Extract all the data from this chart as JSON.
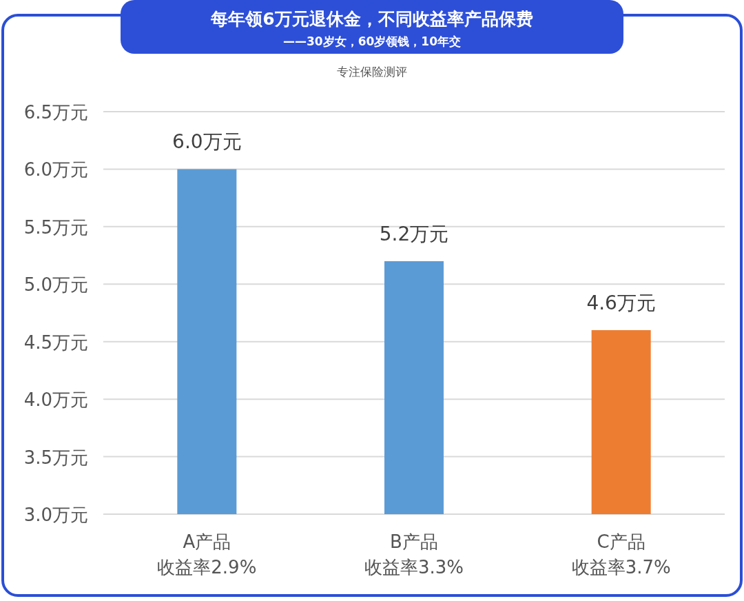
{
  "chart_data": {
    "type": "bar",
    "title": "每年领6万元退休金，不同收益率产品保费",
    "subtitle": "——30岁女，60岁领钱，10年交",
    "annotations": [
      "专注保险测评"
    ],
    "categories": [
      "A产品收益率2.9%",
      "B产品收益率3.3%",
      "C产品收益率3.7%"
    ],
    "values": [
      6.0,
      5.2,
      4.6
    ],
    "colors": [
      "#5b9bd5",
      "#5b9bd5",
      "#ed7d31"
    ],
    "value_labels": [
      "6.0万元",
      "5.2万元",
      "4.6万元"
    ],
    "ylim": [
      3.0,
      6.5
    ],
    "yticks": [
      {
        "value": 3.0,
        "label": "3.0万元"
      },
      {
        "value": 3.5,
        "label": "3.5万元"
      },
      {
        "value": 4.0,
        "label": "4.0万元"
      },
      {
        "value": 4.5,
        "label": "4.5万元"
      },
      {
        "value": 5.0,
        "label": "5.0万元"
      },
      {
        "value": 5.5,
        "label": "5.5万元"
      },
      {
        "value": 6.0,
        "label": "6.0万元"
      },
      {
        "value": 6.5,
        "label": "6.5万元"
      }
    ],
    "grid": "y"
  }
}
